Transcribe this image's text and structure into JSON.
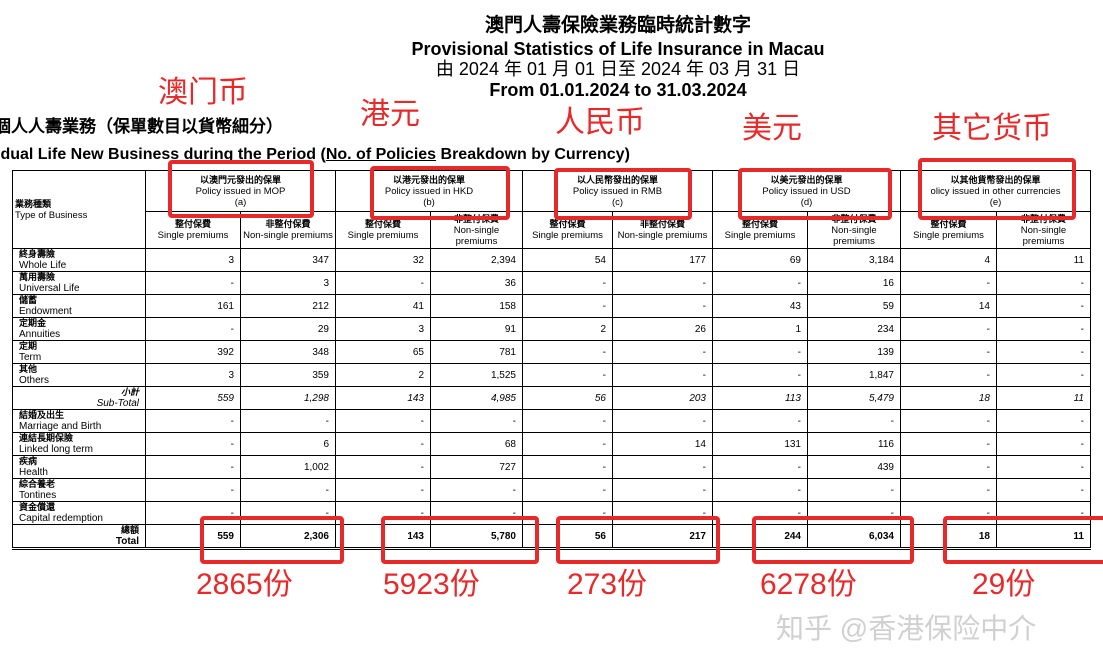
{
  "title": {
    "zh": "澳門人壽保險業務臨時統計數字",
    "en": "Provisional Statistics of Life Insurance in Macau",
    "period_zh": "由 2024 年 01 月 01 日至 2024 年 03 月 31 日",
    "period_en": "From 01.01.2024 to 31.03.2024"
  },
  "subtitle": {
    "zh": "個人人壽業務（保單數目以貨幣細分）",
    "en_pre": "idual Life New Business during the Period (",
    "en_u": "No. of Policies",
    "en_post": " Breakdown by Currency)"
  },
  "table": {
    "type_zh": "業務種類",
    "type_en": "Type of Business",
    "currencies": [
      {
        "zh": "以澳門元發出的保單",
        "en": "Policy issued in MOP",
        "code": "(a)"
      },
      {
        "zh": "以港元發出的保單",
        "en": "Policy issued in HKD",
        "code": "(b)"
      },
      {
        "zh": "以人民幣發出的保單",
        "en": "Policy issued in RMB",
        "code": "(c)"
      },
      {
        "zh": "以美元發出的保單",
        "en": "Policy issued in USD",
        "code": "(d)"
      },
      {
        "zh": "以其他貨幣發出的保單",
        "en": "olicy issued in other currencies",
        "code": "(e)"
      }
    ],
    "single_zh": "整付保費",
    "single_en": "Single premiums",
    "non_zh": "非整付保費",
    "non_en": "Non-single premiums",
    "rows": [
      {
        "zh": "終身壽險",
        "en": "Whole Life",
        "v": [
          "3",
          "347",
          "32",
          "2,394",
          "54",
          "177",
          "69",
          "3,184",
          "4",
          "11"
        ]
      },
      {
        "zh": "萬用壽險",
        "en": "Universal Life",
        "v": [
          "-",
          "3",
          "-",
          "36",
          "-",
          "-",
          "-",
          "16",
          "-",
          "-"
        ]
      },
      {
        "zh": "儲蓄",
        "en": "Endowment",
        "v": [
          "161",
          "212",
          "41",
          "158",
          "-",
          "-",
          "43",
          "59",
          "14",
          "-"
        ]
      },
      {
        "zh": "定期金",
        "en": "Annuities",
        "v": [
          "-",
          "29",
          "3",
          "91",
          "2",
          "26",
          "1",
          "234",
          "-",
          "-"
        ]
      },
      {
        "zh": "定期",
        "en": "Term",
        "v": [
          "392",
          "348",
          "65",
          "781",
          "-",
          "-",
          "-",
          "139",
          "-",
          "-"
        ]
      },
      {
        "zh": "其他",
        "en": "Others",
        "v": [
          "3",
          "359",
          "2",
          "1,525",
          "-",
          "-",
          "-",
          "1,847",
          "-",
          "-"
        ]
      },
      {
        "zh": "小計",
        "en": "Sub-Total",
        "v": [
          "559",
          "1,298",
          "143",
          "4,985",
          "56",
          "203",
          "113",
          "5,479",
          "18",
          "11"
        ]
      },
      {
        "zh": "結婚及出生",
        "en": "Marriage and Birth",
        "v": [
          "-",
          "-",
          "-",
          "-",
          "-",
          "-",
          "-",
          "-",
          "-",
          "-"
        ]
      },
      {
        "zh": "連結長期保險",
        "en": "Linked long term",
        "v": [
          "-",
          "6",
          "-",
          "68",
          "-",
          "14",
          "131",
          "116",
          "-",
          "-"
        ]
      },
      {
        "zh": "疾病",
        "en": "Health",
        "v": [
          "-",
          "1,002",
          "-",
          "727",
          "-",
          "-",
          "-",
          "439",
          "-",
          "-"
        ]
      },
      {
        "zh": "綜合養老",
        "en": "Tontines",
        "v": [
          "-",
          "-",
          "-",
          "-",
          "-",
          "-",
          "-",
          "-",
          "-",
          "-"
        ]
      },
      {
        "zh": "資金償還",
        "en": "Capital redemption",
        "v": [
          "-",
          "-",
          "-",
          "-",
          "-",
          "-",
          "-",
          "-",
          "-",
          "-"
        ]
      },
      {
        "zh": "總額",
        "en": "Total",
        "v": [
          "559",
          "2,306",
          "143",
          "5,780",
          "56",
          "217",
          "244",
          "6,034",
          "18",
          "11"
        ]
      }
    ]
  },
  "annotations": {
    "labels": [
      "澳门币",
      "港元",
      "人民币",
      "美元",
      "其它货币"
    ],
    "totals": [
      "2865份",
      "5923份",
      "273份",
      "6278份",
      "29份"
    ],
    "color": "#e8292a"
  },
  "watermark": "知乎 @香港保险中介"
}
